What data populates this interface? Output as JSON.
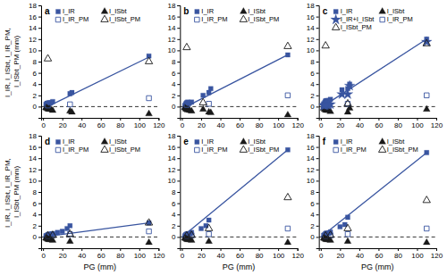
{
  "chart_data": [
    {
      "type": "scatter",
      "title": "a",
      "ylabel": "I_IR, I_ISbt, I_IR_PM, I_ISbt_PM (mm)",
      "xlim": [
        -2,
        120
      ],
      "ylim": [
        -2,
        18
      ],
      "xticks": [
        0,
        20,
        40,
        60,
        80,
        100,
        120
      ],
      "yticks": [
        0,
        2,
        4,
        6,
        8,
        10,
        12,
        14,
        16,
        18
      ],
      "grid": false,
      "legend": "top",
      "series": [
        {
          "type": "line",
          "line_style": "dashed",
          "color": "#000000",
          "x": [
            -2,
            120
          ],
          "values": [
            0,
            0
          ]
        },
        {
          "type": "line",
          "line_style": "solid",
          "color": "#3955A0",
          "x": [
            0,
            110
          ],
          "values": [
            -0.4,
            8.8
          ]
        },
        {
          "name": "I_IR",
          "type": "scatter",
          "marker": "square",
          "color": "#3955A0",
          "x": [
            3,
            4,
            5,
            5.5,
            6,
            7,
            8,
            10,
            28,
            30,
            110
          ],
          "values": [
            0.4,
            0.6,
            0.6,
            0.5,
            0.7,
            0.6,
            0.7,
            0.9,
            2.3,
            2.5,
            9.0
          ]
        },
        {
          "name": "I_ISbt",
          "type": "scatter",
          "marker": "triangle",
          "color": "#1a1a1a",
          "x": [
            3,
            4,
            5,
            6,
            7,
            8,
            10,
            28,
            30,
            110
          ],
          "values": [
            -0.2,
            -0.3,
            -0.4,
            -0.5,
            -0.4,
            -0.5,
            -0.7,
            -0.8,
            -1.0,
            -1.3
          ]
        },
        {
          "name": "I_IR_PM",
          "type": "scatter",
          "marker": "square-open",
          "color": "#3955A0",
          "x": [
            5,
            28,
            110
          ],
          "values": [
            0.2,
            0.4,
            1.5
          ]
        },
        {
          "name": "I_ISbt_PM",
          "type": "scatter",
          "marker": "triangle-open",
          "color": "#1a1a1a",
          "x": [
            5,
            110
          ],
          "values": [
            8.5,
            8.0
          ]
        }
      ]
    },
    {
      "type": "scatter",
      "title": "b",
      "xlim": [
        -2,
        120
      ],
      "ylim": [
        -2,
        18
      ],
      "xticks": [
        0,
        20,
        40,
        60,
        80,
        100,
        120
      ],
      "yticks": [
        0,
        2,
        4,
        6,
        8,
        10,
        12,
        14,
        16,
        18
      ],
      "grid": false,
      "legend": "top",
      "series": [
        {
          "type": "line",
          "line_style": "dashed",
          "color": "#000000",
          "x": [
            -2,
            120
          ],
          "values": [
            0,
            0
          ]
        },
        {
          "type": "line",
          "line_style": "solid",
          "color": "#3955A0",
          "x": [
            0,
            110
          ],
          "values": [
            -0.4,
            9.2
          ]
        },
        {
          "name": "I_IR",
          "type": "scatter",
          "marker": "square",
          "color": "#3955A0",
          "x": [
            3,
            4,
            5,
            5,
            6,
            7,
            8,
            10,
            22,
            28,
            30,
            110
          ],
          "values": [
            0.2,
            0.5,
            0.7,
            0.6,
            0.8,
            0.5,
            0.7,
            0.8,
            2.0,
            2.5,
            3.2,
            9.2
          ]
        },
        {
          "name": "I_ISbt",
          "type": "scatter",
          "marker": "triangle",
          "color": "#1a1a1a",
          "x": [
            3,
            4,
            5,
            6,
            7,
            8,
            10,
            22,
            28,
            30,
            110
          ],
          "values": [
            -0.2,
            -0.4,
            -0.5,
            -0.6,
            -0.5,
            -0.7,
            -0.8,
            -0.5,
            -1.0,
            -1.1,
            -1.5
          ]
        },
        {
          "name": "I_IR_PM",
          "type": "scatter",
          "marker": "square-open",
          "color": "#3955A0",
          "x": [
            5,
            28,
            110
          ],
          "values": [
            0.3,
            0.5,
            2.0
          ]
        },
        {
          "name": "I_ISbt_PM",
          "type": "scatter",
          "marker": "triangle-open",
          "color": "#1a1a1a",
          "x": [
            5,
            22,
            110
          ],
          "values": [
            10.5,
            0.7,
            10.7
          ]
        }
      ]
    },
    {
      "type": "scatter",
      "title": "c",
      "xlim": [
        -2,
        120
      ],
      "ylim": [
        -2,
        18
      ],
      "xticks": [
        0,
        20,
        40,
        60,
        80,
        100,
        120
      ],
      "yticks": [
        0,
        2,
        4,
        6,
        8,
        10,
        12,
        14,
        16,
        18
      ],
      "grid": false,
      "legend": "top",
      "series": [
        {
          "type": "line",
          "line_style": "dashed",
          "color": "#000000",
          "x": [
            -2,
            120
          ],
          "values": [
            0,
            0
          ]
        },
        {
          "type": "line",
          "line_style": "solid",
          "color": "#3955A0",
          "x": [
            0,
            110
          ],
          "values": [
            -0.2,
            12.0
          ]
        },
        {
          "name": "I_IR",
          "type": "scatter",
          "marker": "square",
          "color": "#3955A0",
          "x": [
            3,
            4,
            5,
            5,
            6,
            7,
            8,
            10,
            22,
            28,
            30,
            110
          ],
          "values": [
            0.5,
            0.7,
            0.9,
            1.0,
            1.1,
            0.9,
            1.1,
            1.3,
            3.0,
            3.2,
            4.0,
            12.0
          ]
        },
        {
          "name": "I_ISbt",
          "type": "scatter",
          "marker": "triangle",
          "color": "#1a1a1a",
          "x": [
            3,
            4,
            5,
            6,
            7,
            8,
            10,
            28,
            30,
            110
          ],
          "values": [
            -0.3,
            -0.5,
            -0.6,
            -0.7,
            -0.6,
            -0.7,
            -0.9,
            -1.0,
            -0.3,
            -0.5
          ]
        },
        {
          "name": "I_IR+I_ISbt",
          "type": "scatter",
          "marker": "star",
          "color": "#3955A0",
          "x": [
            3,
            4,
            5,
            6,
            7,
            8,
            10,
            22,
            28,
            30,
            110
          ],
          "values": [
            0.2,
            0.2,
            0.3,
            0.4,
            0.3,
            0.4,
            0.4,
            2.2,
            2.2,
            3.7,
            11.5
          ]
        },
        {
          "name": "I_IR_PM",
          "type": "scatter",
          "marker": "square-open",
          "color": "#3955A0",
          "x": [
            5,
            28,
            110
          ],
          "values": [
            0.3,
            0.5,
            2.0
          ]
        },
        {
          "name": "I_ISbt_PM",
          "type": "scatter",
          "marker": "triangle-open",
          "color": "#1a1a1a",
          "x": [
            5,
            28,
            110
          ],
          "values": [
            10.8,
            0.5,
            11.2
          ]
        }
      ]
    },
    {
      "type": "scatter",
      "title": "d",
      "xlabel": "PG (mm)",
      "ylabel": "I_IR, I_ISbt, I_IR_PM, I_ISbt_PM (mm)",
      "xlim": [
        -2,
        120
      ],
      "ylim": [
        -2,
        18
      ],
      "xticks": [
        0,
        20,
        40,
        60,
        80,
        100,
        120
      ],
      "yticks": [
        0,
        2,
        4,
        6,
        8,
        10,
        12,
        14,
        16,
        18
      ],
      "grid": false,
      "legend": "top",
      "series": [
        {
          "type": "line",
          "line_style": "dashed",
          "color": "#000000",
          "x": [
            -2,
            120
          ],
          "values": [
            0,
            0
          ]
        },
        {
          "type": "line",
          "line_style": "solid",
          "color": "#3955A0",
          "x": [
            0,
            110
          ],
          "values": [
            0.0,
            2.5
          ]
        },
        {
          "name": "I_IR",
          "type": "scatter",
          "marker": "square",
          "color": "#3955A0",
          "x": [
            3,
            4,
            5,
            6,
            7,
            8,
            9,
            10,
            15,
            20,
            25,
            28,
            110
          ],
          "values": [
            0.2,
            0.3,
            0.4,
            0.5,
            0.4,
            0.5,
            0.5,
            0.6,
            0.8,
            1.0,
            1.5,
            2.0,
            2.5
          ]
        },
        {
          "name": "I_ISbt",
          "type": "scatter",
          "marker": "triangle",
          "color": "#1a1a1a",
          "x": [
            3,
            4,
            5,
            6,
            7,
            8,
            10,
            28,
            110
          ],
          "values": [
            -0.2,
            -0.3,
            -0.4,
            -0.5,
            -0.4,
            -0.5,
            -0.6,
            -0.8,
            -1.0
          ]
        },
        {
          "name": "I_IR_PM",
          "type": "scatter",
          "marker": "square-open",
          "color": "#3955A0",
          "x": [
            5,
            10,
            28,
            110
          ],
          "values": [
            0.2,
            0.3,
            0.5,
            1.0
          ]
        },
        {
          "name": "I_ISbt_PM",
          "type": "scatter",
          "marker": "triangle-open",
          "color": "#1a1a1a",
          "x": [
            5,
            10,
            28,
            110
          ],
          "values": [
            0.2,
            0.3,
            0.5,
            2.5
          ]
        }
      ]
    },
    {
      "type": "scatter",
      "title": "e",
      "xlabel": "PG (mm)",
      "xlim": [
        -2,
        120
      ],
      "ylim": [
        -2,
        18
      ],
      "xticks": [
        0,
        20,
        40,
        60,
        80,
        100,
        120
      ],
      "yticks": [
        0,
        2,
        4,
        6,
        8,
        10,
        12,
        14,
        16,
        18
      ],
      "grid": false,
      "legend": "top",
      "series": [
        {
          "type": "line",
          "line_style": "dashed",
          "color": "#000000",
          "x": [
            -2,
            120
          ],
          "values": [
            0,
            0
          ]
        },
        {
          "type": "line",
          "line_style": "solid",
          "color": "#3955A0",
          "x": [
            0,
            110
          ],
          "values": [
            0.0,
            15.5
          ]
        },
        {
          "name": "I_IR",
          "type": "scatter",
          "marker": "square",
          "color": "#3955A0",
          "x": [
            3,
            4,
            5,
            6,
            7,
            8,
            9,
            10,
            20,
            25,
            28,
            110
          ],
          "values": [
            0.2,
            0.4,
            0.5,
            0.6,
            0.5,
            0.6,
            0.6,
            0.8,
            1.5,
            2.0,
            3.0,
            15.5
          ]
        },
        {
          "name": "I_ISbt",
          "type": "scatter",
          "marker": "triangle",
          "color": "#1a1a1a",
          "x": [
            3,
            4,
            5,
            6,
            7,
            8,
            10,
            28,
            110
          ],
          "values": [
            -0.2,
            -0.3,
            -0.4,
            -0.5,
            -0.4,
            -0.5,
            -0.6,
            -0.8,
            -1.0
          ]
        },
        {
          "name": "I_IR_PM",
          "type": "scatter",
          "marker": "square-open",
          "color": "#3955A0",
          "x": [
            5,
            10,
            28,
            110
          ],
          "values": [
            0.2,
            0.3,
            0.5,
            1.5
          ]
        },
        {
          "name": "I_ISbt_PM",
          "type": "scatter",
          "marker": "triangle-open",
          "color": "#1a1a1a",
          "x": [
            5,
            10,
            28,
            110
          ],
          "values": [
            0.2,
            0.3,
            1.5,
            7.0
          ]
        }
      ]
    },
    {
      "type": "scatter",
      "title": "f",
      "xlabel": "PG (mm)",
      "xlim": [
        -2,
        120
      ],
      "ylim": [
        -2,
        18
      ],
      "xticks": [
        0,
        20,
        40,
        60,
        80,
        100,
        120
      ],
      "yticks": [
        0,
        2,
        4,
        6,
        8,
        10,
        12,
        14,
        16,
        18
      ],
      "grid": false,
      "legend": "top",
      "series": [
        {
          "type": "line",
          "line_style": "dashed",
          "color": "#000000",
          "x": [
            -2,
            120
          ],
          "values": [
            0,
            0
          ]
        },
        {
          "type": "line",
          "line_style": "solid",
          "color": "#3955A0",
          "x": [
            0,
            110
          ],
          "values": [
            0.0,
            15.0
          ]
        },
        {
          "name": "I_IR",
          "type": "scatter",
          "marker": "square",
          "color": "#3955A0",
          "x": [
            3,
            4,
            5,
            6,
            7,
            8,
            9,
            10,
            20,
            25,
            28,
            110
          ],
          "values": [
            0.3,
            0.4,
            0.6,
            0.7,
            0.6,
            0.7,
            0.7,
            0.9,
            1.8,
            2.2,
            3.5,
            15.0
          ]
        },
        {
          "name": "I_ISbt",
          "type": "scatter",
          "marker": "triangle",
          "color": "#1a1a1a",
          "x": [
            3,
            4,
            5,
            6,
            7,
            8,
            10,
            28,
            110
          ],
          "values": [
            -0.2,
            -0.3,
            -0.4,
            -0.5,
            -0.4,
            -0.5,
            -0.6,
            -0.8,
            -1.0
          ]
        },
        {
          "name": "I_IR_PM",
          "type": "scatter",
          "marker": "square-open",
          "color": "#3955A0",
          "x": [
            5,
            10,
            28,
            110
          ],
          "values": [
            0.2,
            0.3,
            0.5,
            1.5
          ]
        },
        {
          "name": "I_ISbt_PM",
          "type": "scatter",
          "marker": "triangle-open",
          "color": "#1a1a1a",
          "x": [
            5,
            10,
            28,
            110
          ],
          "values": [
            0.2,
            0.3,
            1.5,
            6.5
          ]
        }
      ]
    }
  ]
}
